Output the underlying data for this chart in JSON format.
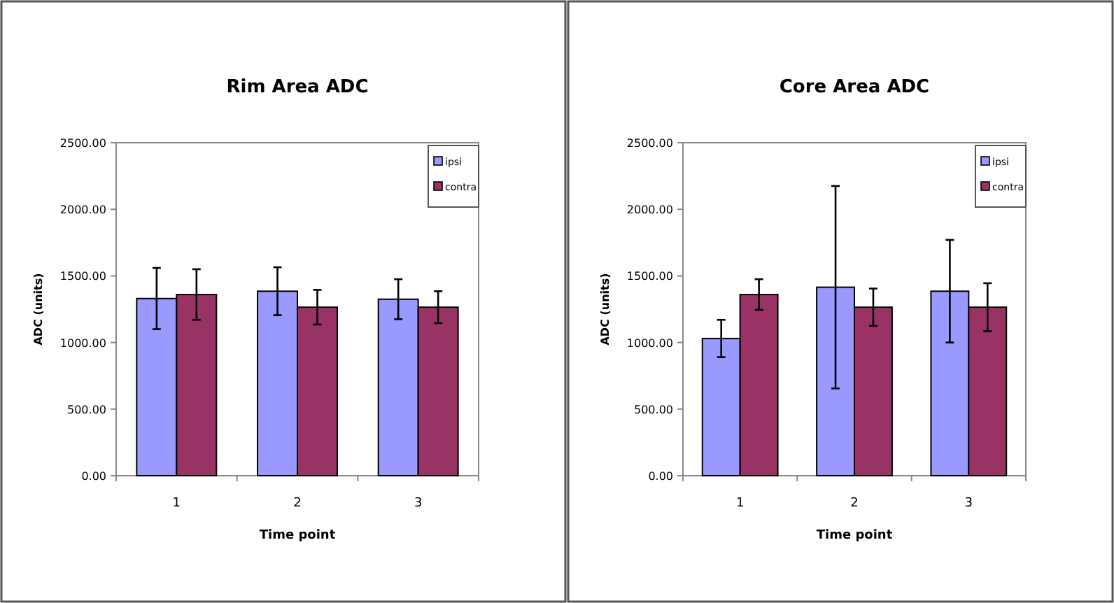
{
  "chart_data": [
    {
      "type": "bar",
      "title": "Rim Area ADC",
      "xlabel": "Time point",
      "ylabel": "ADC (units)",
      "categories": [
        "1",
        "2",
        "3"
      ],
      "ylim": [
        0,
        2500
      ],
      "yticks": [
        {
          "value": 0,
          "label": "0.00"
        },
        {
          "value": 500,
          "label": "500.00"
        },
        {
          "value": 1000,
          "label": "1000.00"
        },
        {
          "value": 1500,
          "label": "1500.00"
        },
        {
          "value": 2000,
          "label": "2000.00"
        },
        {
          "value": 2500,
          "label": "2500.00"
        }
      ],
      "grid": false,
      "legend": "top right",
      "series": [
        {
          "name": "ipsi",
          "color": "#9999ff",
          "values": [
            1330,
            1385,
            1325
          ],
          "errors": [
            230,
            180,
            150
          ]
        },
        {
          "name": "contra",
          "color": "#993366",
          "values": [
            1360,
            1265,
            1265
          ],
          "errors": [
            190,
            130,
            120
          ]
        }
      ]
    },
    {
      "type": "bar",
      "title": "Core Area ADC",
      "xlabel": "Time point",
      "ylabel": "ADC (units)",
      "categories": [
        "1",
        "2",
        "3"
      ],
      "ylim": [
        0,
        2500
      ],
      "yticks": [
        {
          "value": 0,
          "label": "0.00"
        },
        {
          "value": 500,
          "label": "500.00"
        },
        {
          "value": 1000,
          "label": "1000.00"
        },
        {
          "value": 1500,
          "label": "1500.00"
        },
        {
          "value": 2000,
          "label": "2000.00"
        },
        {
          "value": 2500,
          "label": "2500.00"
        }
      ],
      "grid": false,
      "legend": "top right",
      "series": [
        {
          "name": "ipsi",
          "color": "#9999ff",
          "values": [
            1030,
            1415,
            1385
          ],
          "errors": [
            140,
            760,
            385
          ]
        },
        {
          "name": "contra",
          "color": "#993366",
          "values": [
            1360,
            1265,
            1265
          ],
          "errors": [
            115,
            140,
            180
          ]
        }
      ]
    }
  ]
}
